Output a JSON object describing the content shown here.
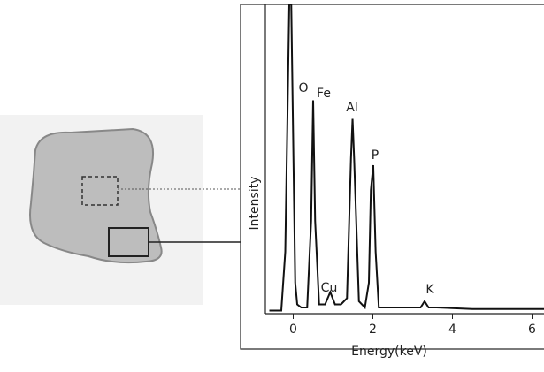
{
  "chart_data": {
    "type": "line",
    "x_label": "Energy(keV)",
    "y_label": "Intensity",
    "annotations": [
      "O",
      "Fe",
      "Al",
      "Cu",
      "P",
      "K"
    ],
    "xlim": [
      -0.7,
      6.3
    ],
    "ylim": [
      0,
      100
    ],
    "xticks": [
      0,
      2,
      4,
      6
    ],
    "series": [
      {
        "color": "#111111",
        "x": [
          -0.6,
          -0.3,
          -0.2,
          -0.1,
          -0.05,
          0.05,
          0.1,
          0.2,
          0.35,
          0.45,
          0.5,
          0.55,
          0.65,
          0.8,
          0.93,
          1.05,
          1.2,
          1.35,
          1.45,
          1.49,
          1.53,
          1.65,
          1.8,
          1.9,
          1.95,
          2.01,
          2.07,
          2.15,
          2.4,
          3.0,
          3.2,
          3.3,
          3.4,
          3.6,
          4.5,
          5.5,
          6.3
        ],
        "values": [
          1,
          1,
          20,
          100,
          100,
          10,
          3,
          2,
          2,
          30,
          69,
          30,
          3,
          3,
          7,
          3,
          3,
          5,
          50,
          63,
          50,
          4,
          2,
          10,
          40,
          48,
          20,
          2,
          2,
          2,
          2,
          4,
          2,
          2,
          1.5,
          1.5,
          1.5
        ]
      }
    ]
  }
}
